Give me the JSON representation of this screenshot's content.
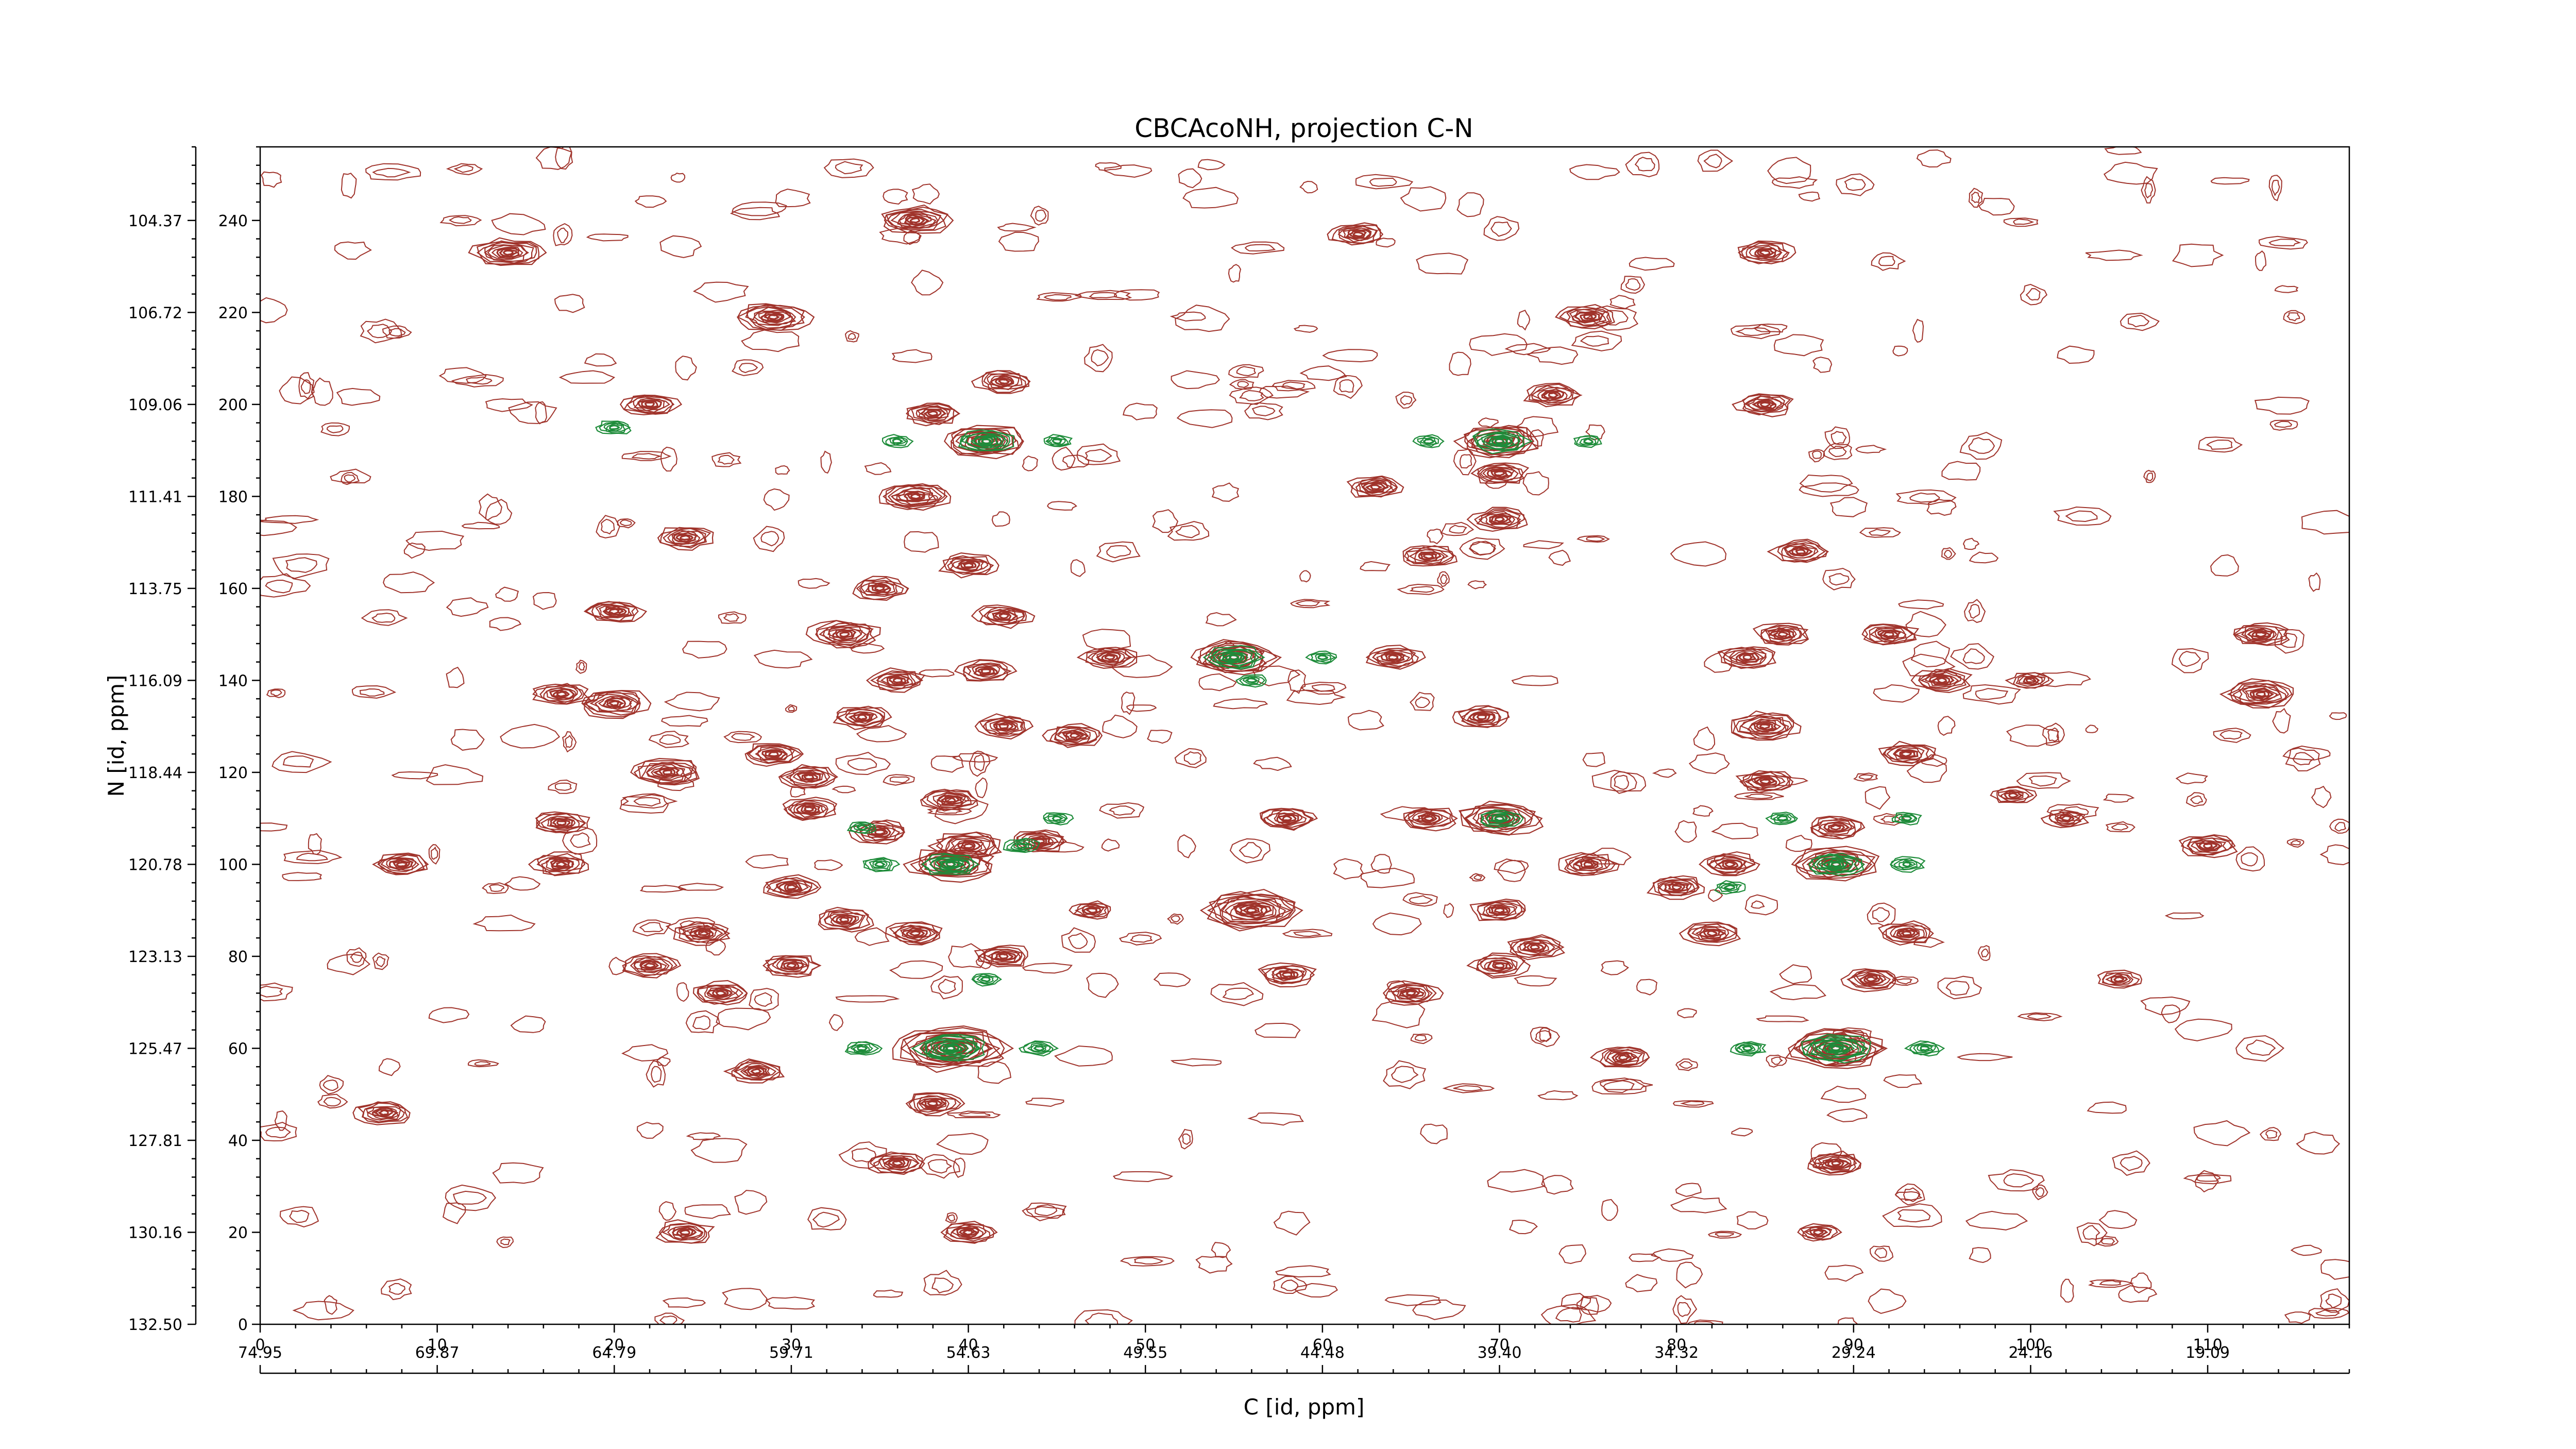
{
  "chart_data": {
    "type": "contour",
    "title": "CBCAcoNH, projection C-N",
    "xlabel": "C [id, ppm]",
    "ylabel": "N [id, ppm]",
    "x_index": {
      "ticks": [
        0,
        10,
        20,
        30,
        40,
        50,
        60,
        70,
        80,
        90,
        100,
        110
      ],
      "tick_labels": [
        "0",
        "10",
        "20",
        "30",
        "40",
        "50",
        "60",
        "70",
        "80",
        "90",
        "100",
        "110"
      ],
      "range": [
        0,
        118
      ]
    },
    "x_ppm": {
      "tick_labels": [
        "74.95",
        "69.87",
        "64.79",
        "59.71",
        "54.63",
        "49.55",
        "44.48",
        "39.40",
        "34.32",
        "29.24",
        "24.16",
        "19.09"
      ],
      "ppm_per_index": -0.508
    },
    "y_index": {
      "ticks": [
        0,
        20,
        40,
        60,
        80,
        100,
        120,
        140,
        160,
        180,
        200,
        220,
        240
      ],
      "tick_labels": [
        "0",
        "20",
        "40",
        "60",
        "80",
        "100",
        "120",
        "140",
        "160",
        "180",
        "200",
        "220",
        "240"
      ],
      "range": [
        0,
        256
      ]
    },
    "y_ppm": {
      "tick_labels": [
        "132.50",
        "130.16",
        "127.81",
        "125.47",
        "123.13",
        "120.78",
        "118.44",
        "116.09",
        "113.75",
        "111.41",
        "109.06",
        "106.72",
        "104.37"
      ],
      "ppm_per_index": -0.1172
    },
    "colors": {
      "positive": "#a0332b",
      "negative": "#1e8c3a"
    },
    "peaks": [
      [
        39,
        60,
        4,
        "p"
      ],
      [
        89,
        60,
        3.5,
        "p"
      ],
      [
        39,
        100,
        3,
        "p"
      ],
      [
        89,
        100,
        3,
        "p"
      ],
      [
        56,
        90,
        3.5,
        "p"
      ],
      [
        70,
        110,
        3,
        "p"
      ],
      [
        55,
        145,
        3,
        "p"
      ],
      [
        41,
        192,
        3,
        "p"
      ],
      [
        70,
        192,
        3,
        "p"
      ],
      [
        37,
        240,
        2.5,
        "p"
      ],
      [
        14,
        233,
        2.5,
        "p"
      ],
      [
        29,
        219,
        2.5,
        "p"
      ],
      [
        75,
        219,
        2,
        "p"
      ],
      [
        85,
        233,
        2,
        "p"
      ],
      [
        62,
        237,
        2,
        "p"
      ],
      [
        113,
        150,
        2,
        "p"
      ],
      [
        113,
        137,
        2.5,
        "p"
      ],
      [
        20,
        135,
        2.5,
        "p"
      ],
      [
        17,
        137,
        2,
        "p"
      ],
      [
        20,
        155,
        2,
        "p"
      ],
      [
        8,
        100,
        2,
        "p"
      ],
      [
        17,
        109,
        2,
        "p"
      ],
      [
        17,
        100,
        2,
        "p"
      ],
      [
        23,
        120,
        2.5,
        "p"
      ],
      [
        37,
        180,
        2.5,
        "p"
      ],
      [
        33,
        150,
        2.5,
        "p"
      ],
      [
        29,
        124,
        2,
        "p"
      ],
      [
        24,
        20,
        2,
        "p"
      ],
      [
        7,
        46,
        2,
        "p"
      ],
      [
        28,
        55,
        2,
        "p"
      ],
      [
        36,
        35,
        2,
        "p"
      ],
      [
        38,
        48,
        2,
        "p"
      ],
      [
        40,
        20,
        2,
        "p"
      ],
      [
        73,
        202,
        2,
        "p"
      ],
      [
        70,
        185,
        2,
        "p"
      ],
      [
        42,
        205,
        2,
        "p"
      ],
      [
        38,
        198,
        2,
        "p"
      ],
      [
        31,
        119,
        2,
        "p"
      ],
      [
        31,
        112,
        2,
        "p"
      ],
      [
        39,
        114,
        2,
        "p"
      ],
      [
        40,
        104,
        2.5,
        "p"
      ],
      [
        35,
        107,
        2,
        "p"
      ],
      [
        44,
        105,
        2,
        "p"
      ],
      [
        58,
        110,
        2,
        "p"
      ],
      [
        64,
        145,
        2,
        "p"
      ],
      [
        66,
        167,
        2,
        "p"
      ],
      [
        70,
        175,
        2,
        "p"
      ],
      [
        69,
        132,
        2,
        "p"
      ],
      [
        66,
        110,
        2,
        "p"
      ],
      [
        70,
        90,
        2,
        "p"
      ],
      [
        65,
        72,
        2,
        "p"
      ],
      [
        58,
        76,
        2,
        "p"
      ],
      [
        70,
        78,
        2,
        "p"
      ],
      [
        72,
        82,
        2,
        "p"
      ],
      [
        77,
        58,
        2,
        "p"
      ],
      [
        85,
        130,
        2.5,
        "p"
      ],
      [
        84,
        145,
        2,
        "p"
      ],
      [
        86,
        150,
        2,
        "p"
      ],
      [
        83,
        100,
        2,
        "p"
      ],
      [
        85,
        118,
        2,
        "p"
      ],
      [
        89,
        35,
        2,
        "p"
      ],
      [
        89,
        108,
        2,
        "p"
      ],
      [
        93,
        124,
        2,
        "p"
      ],
      [
        95,
        140,
        2,
        "p"
      ],
      [
        92,
        150,
        2,
        "p"
      ],
      [
        85,
        200,
        2,
        "p"
      ],
      [
        105,
        75,
        1.5,
        "p"
      ],
      [
        102,
        110,
        1.5,
        "p"
      ],
      [
        110,
        104,
        2,
        "p"
      ],
      [
        88,
        20,
        1.5,
        "p"
      ],
      [
        87,
        168,
        2,
        "p"
      ],
      [
        63,
        182,
        2,
        "p"
      ],
      [
        24,
        171,
        2,
        "p"
      ],
      [
        22,
        200,
        2,
        "p"
      ],
      [
        48,
        145,
        2,
        "p"
      ],
      [
        46,
        128,
        2,
        "p"
      ],
      [
        42,
        130,
        2,
        "p"
      ],
      [
        30,
        95,
        2,
        "p"
      ],
      [
        25,
        85,
        2,
        "p"
      ],
      [
        22,
        78,
        2,
        "p"
      ],
      [
        26,
        72,
        2,
        "p"
      ],
      [
        33,
        88,
        2,
        "p"
      ],
      [
        37,
        85,
        2,
        "p"
      ],
      [
        42,
        80,
        2,
        "p"
      ],
      [
        30,
        78,
        2,
        "p"
      ],
      [
        35,
        160,
        2,
        "p"
      ],
      [
        40,
        165,
        2,
        "p"
      ],
      [
        36,
        140,
        2,
        "p"
      ],
      [
        41,
        142,
        2,
        "p"
      ],
      [
        34,
        132,
        2,
        "p"
      ],
      [
        42,
        154,
        2,
        "p"
      ],
      [
        47,
        90,
        1.5,
        "p"
      ],
      [
        75,
        100,
        2,
        "p"
      ],
      [
        80,
        95,
        2,
        "p"
      ],
      [
        82,
        85,
        2,
        "p"
      ],
      [
        93,
        85,
        2,
        "p"
      ],
      [
        91,
        75,
        2,
        "p"
      ],
      [
        99,
        115,
        1.5,
        "p"
      ],
      [
        100,
        140,
        1.5,
        "p"
      ],
      [
        39,
        60,
        2.5,
        "n"
      ],
      [
        89,
        60,
        2.5,
        "n"
      ],
      [
        39,
        100,
        2,
        "n"
      ],
      [
        89,
        100,
        2,
        "n"
      ],
      [
        41,
        192,
        2,
        "n"
      ],
      [
        70,
        192,
        2,
        "n"
      ],
      [
        55,
        145,
        2,
        "n"
      ],
      [
        70,
        110,
        1.5,
        "n"
      ],
      [
        34,
        60,
        1.2,
        "n"
      ],
      [
        44,
        60,
        1.2,
        "n"
      ],
      [
        84,
        60,
        1.2,
        "n"
      ],
      [
        94,
        60,
        1.2,
        "n"
      ],
      [
        35,
        100,
        1.2,
        "n"
      ],
      [
        43,
        104,
        1.2,
        "n"
      ],
      [
        93,
        100,
        1.2,
        "n"
      ],
      [
        20,
        195,
        1.2,
        "n"
      ],
      [
        36,
        192,
        1,
        "n"
      ],
      [
        45,
        192,
        1,
        "n"
      ],
      [
        66,
        192,
        1,
        "n"
      ],
      [
        75,
        192,
        1,
        "n"
      ],
      [
        56,
        140,
        1,
        "n"
      ],
      [
        60,
        145,
        1,
        "n"
      ],
      [
        41,
        75,
        1,
        "n"
      ],
      [
        83,
        95,
        1,
        "n"
      ],
      [
        45,
        110,
        1,
        "n"
      ],
      [
        34,
        108,
        1,
        "n"
      ],
      [
        86,
        110,
        1,
        "n"
      ],
      [
        93,
        110,
        1,
        "n"
      ]
    ]
  }
}
